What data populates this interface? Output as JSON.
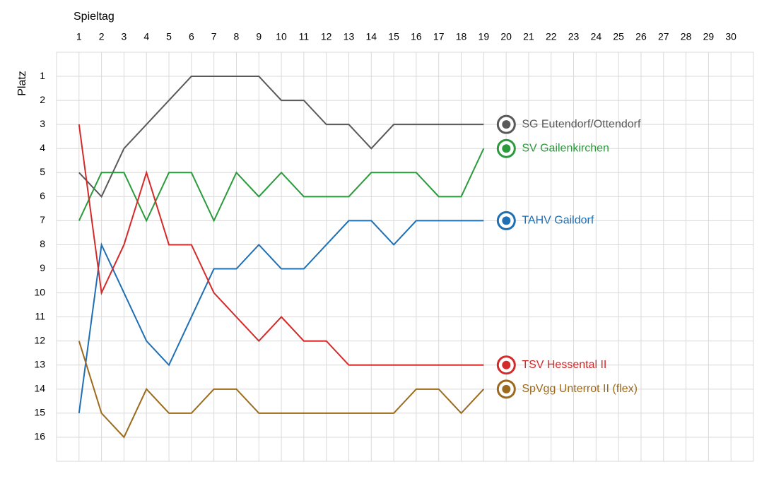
{
  "chart_data": {
    "type": "line",
    "x_label": "Spieltag",
    "y_label": "Platz",
    "x": [
      1,
      2,
      3,
      4,
      5,
      6,
      7,
      8,
      9,
      10,
      11,
      12,
      13,
      14,
      15,
      16,
      17,
      18,
      19
    ],
    "series": [
      {
        "name": "SG Eutendorf/Ottendorf",
        "color": "#595959",
        "values": [
          5,
          6,
          4,
          3,
          2,
          1,
          1,
          1,
          1,
          2,
          2,
          3,
          3,
          4,
          3,
          3,
          3,
          3,
          3
        ]
      },
      {
        "name": "SV Gailenkirchen",
        "color": "#2a9a3c",
        "values": [
          7,
          5,
          5,
          7,
          5,
          5,
          7,
          5,
          6,
          5,
          6,
          6,
          6,
          5,
          5,
          5,
          6,
          6,
          4
        ]
      },
      {
        "name": "TAHV Gaildorf",
        "color": "#1f6fb5",
        "values": [
          15,
          8,
          10,
          12,
          13,
          11,
          9,
          9,
          8,
          9,
          9,
          8,
          7,
          7,
          8,
          7,
          7,
          7,
          7
        ]
      },
      {
        "name": "TSV Hessental II",
        "color": "#d42a2a",
        "values": [
          3,
          10,
          8,
          5,
          8,
          8,
          10,
          11,
          12,
          11,
          12,
          12,
          13,
          13,
          13,
          13,
          13,
          13,
          13
        ]
      },
      {
        "name": "SpVgg Unterrot II (flex)",
        "color": "#9c6a1c",
        "values": [
          12,
          15,
          16,
          14,
          15,
          15,
          14,
          14,
          15,
          15,
          15,
          15,
          15,
          15,
          15,
          14,
          14,
          15,
          14
        ]
      }
    ],
    "xlim": [
      0,
      31
    ],
    "xticks": [
      1,
      2,
      3,
      4,
      5,
      6,
      7,
      8,
      9,
      10,
      11,
      12,
      13,
      14,
      15,
      16,
      17,
      18,
      19,
      20,
      21,
      22,
      23,
      24,
      25,
      26,
      27,
      28,
      29,
      30
    ],
    "ylim": [
      17,
      0
    ],
    "yticks": [
      1,
      2,
      3,
      4,
      5,
      6,
      7,
      8,
      9,
      10,
      11,
      12,
      13,
      14,
      15,
      16
    ],
    "grid": true
  }
}
